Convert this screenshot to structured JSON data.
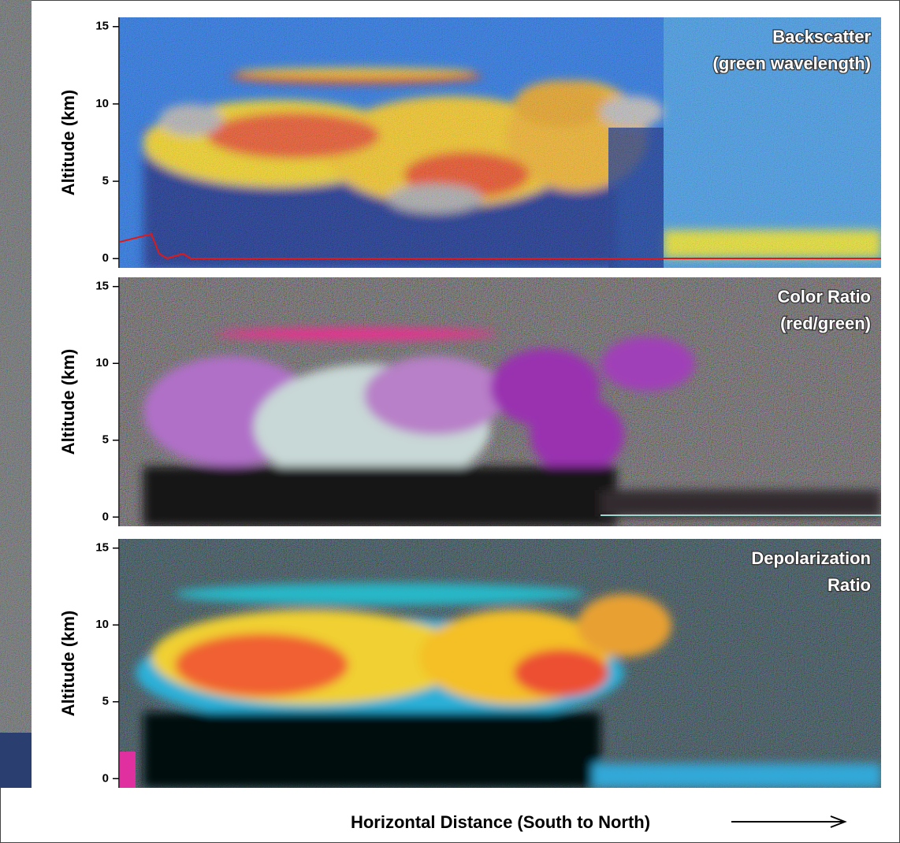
{
  "chart_data": [
    {
      "type": "image",
      "title": [
        "Backscatter",
        "(green wavelength)"
      ],
      "ylabel": "Altitude (km)",
      "ylim": [
        -0.6,
        15.6
      ],
      "yticks": [
        0,
        5,
        10,
        15
      ]
    },
    {
      "type": "image",
      "title": [
        "Color Ratio",
        "(red/green)"
      ],
      "ylabel": "Altitude (km)",
      "ylim": [
        -0.6,
        15.6
      ],
      "yticks": [
        0,
        5,
        10,
        15
      ]
    },
    {
      "type": "image",
      "title": [
        "Depolarization",
        "Ratio"
      ],
      "ylabel": "Altitude (km)",
      "ylim": [
        -0.6,
        15.6
      ],
      "yticks": [
        0,
        5,
        10,
        15
      ],
      "xlabel": "Horizontal Distance (South to North)"
    }
  ]
}
